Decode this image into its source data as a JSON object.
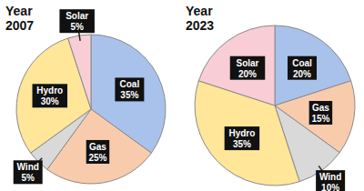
{
  "chart_data": [
    {
      "type": "pie",
      "title": "Year 2007",
      "categories": [
        "Coal",
        "Gas",
        "Wind",
        "Hydro",
        "Solar"
      ],
      "values": [
        35,
        25,
        5,
        30,
        5
      ],
      "value_labels": [
        "35%",
        "25%",
        "5%",
        "30%",
        "5%"
      ],
      "colors": [
        "#a9c2ec",
        "#f9cbad",
        "#d9d9d9",
        "#ffe699",
        "#f9cdd6"
      ],
      "data_labels": true
    },
    {
      "type": "pie",
      "title": "Year 2023",
      "categories": [
        "Coal",
        "Gas",
        "Wind",
        "Hydro",
        "Solar"
      ],
      "values": [
        20,
        15,
        10,
        35,
        20
      ],
      "value_labels": [
        "20%",
        "15%",
        "10%",
        "35%",
        "20%"
      ],
      "colors": [
        "#a9c2ec",
        "#f9cbad",
        "#d9d9d9",
        "#ffe699",
        "#f9cdd6"
      ],
      "data_labels": true
    }
  ]
}
